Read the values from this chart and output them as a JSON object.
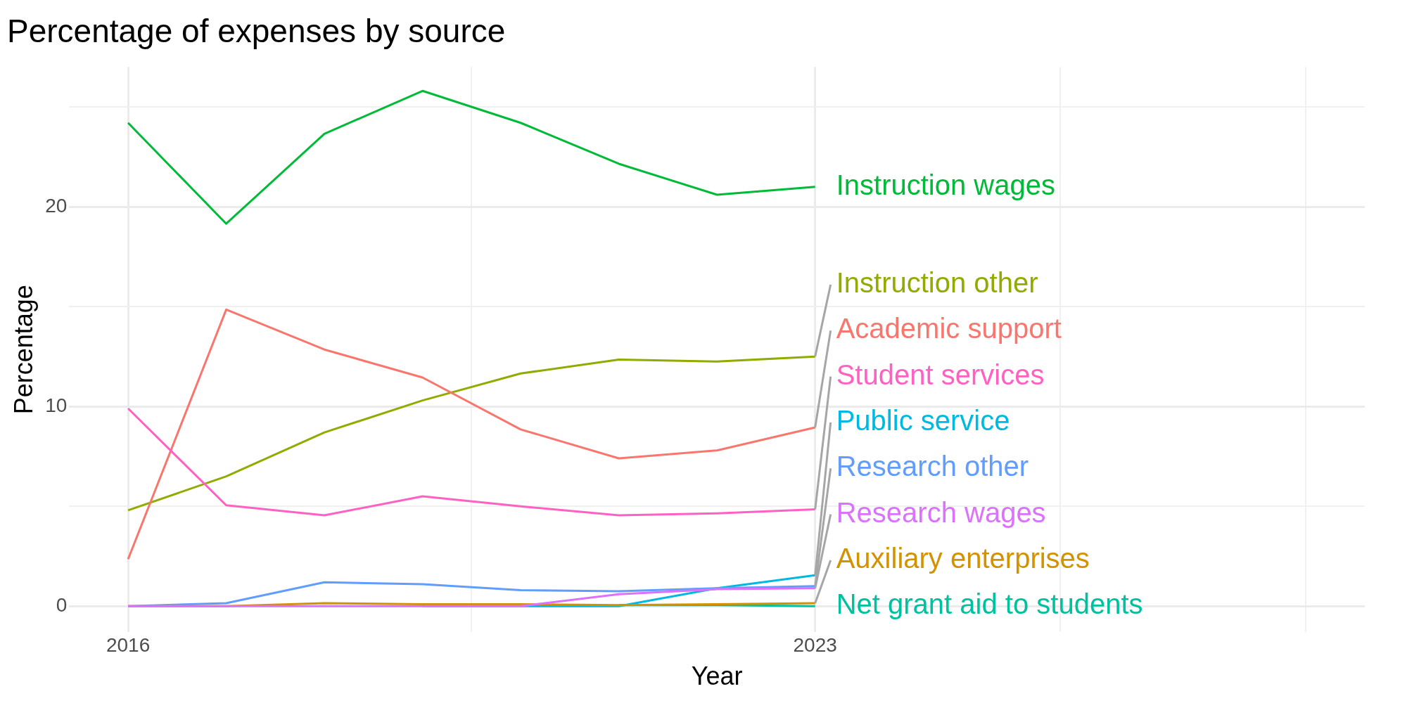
{
  "chart_data": {
    "type": "line",
    "title": "Percentage of expenses by source",
    "xlabel": "Year",
    "ylabel": "Percentage",
    "x": [
      2016,
      2017,
      2018,
      2019,
      2020,
      2021,
      2022,
      2023
    ],
    "series": [
      {
        "name": "Instruction wages",
        "color": "#00ba38",
        "values": [
          24.2,
          19.15,
          23.65,
          25.8,
          24.2,
          22.15,
          20.6,
          21.0
        ]
      },
      {
        "name": "Instruction other",
        "color": "#93aa00",
        "values": [
          4.8,
          6.5,
          8.7,
          10.3,
          11.65,
          12.35,
          12.25,
          12.5
        ]
      },
      {
        "name": "Academic support",
        "color": "#f8766d",
        "values": [
          2.35,
          14.85,
          12.85,
          11.45,
          8.85,
          7.4,
          7.8,
          8.95
        ]
      },
      {
        "name": "Student services",
        "color": "#ff61c3",
        "values": [
          9.9,
          5.05,
          4.55,
          5.5,
          5.0,
          4.55,
          4.65,
          4.85
        ]
      },
      {
        "name": "Public service",
        "color": "#00b9e3",
        "values": [
          null,
          null,
          null,
          0,
          0,
          0,
          0.9,
          1.55
        ]
      },
      {
        "name": "Research other",
        "color": "#619cff",
        "values": [
          0,
          0.15,
          1.2,
          1.1,
          0.8,
          0.75,
          0.9,
          1.0
        ]
      },
      {
        "name": "Net grant aid to students",
        "color": "#00c19f",
        "values": [
          null,
          null,
          null,
          null,
          null,
          0.05,
          0.05,
          0
        ]
      },
      {
        "name": "Auxiliary enterprises",
        "color": "#d39200",
        "values": [
          0,
          0,
          0.15,
          0.1,
          0.1,
          0.05,
          0.1,
          0.15
        ]
      },
      {
        "name": "Research wages",
        "color": "#db72fb",
        "values": [
          0,
          0,
          0,
          0,
          0,
          0.6,
          0.85,
          0.9
        ]
      }
    ],
    "xlim": [
      2015.4,
      2028.6
    ],
    "xticks": [
      2016,
      {
        "value": 2019.5,
        "label": null
      },
      2023,
      {
        "value": 2025.5,
        "label": null
      },
      {
        "value": 2028,
        "label": null
      }
    ],
    "ylim": [
      -1.3,
      27
    ],
    "yticks": [
      0,
      {
        "value": 5,
        "label": null
      },
      10,
      {
        "value": 15,
        "label": null
      },
      20,
      {
        "value": 25,
        "label": null
      }
    ],
    "grid": true,
    "legend": false,
    "marker": "none",
    "line_style": "solid"
  }
}
